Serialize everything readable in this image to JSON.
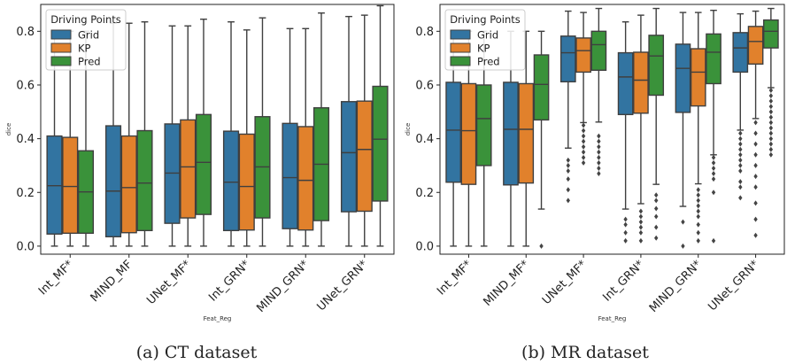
{
  "chart_data": [
    {
      "type": "box",
      "caption": "(a) CT dataset",
      "xlabel": "Feat_Reg",
      "ylabel": "dice",
      "ylim": [
        -0.03,
        0.9
      ],
      "yticks": [
        "0.0",
        "0.2",
        "0.4",
        "0.6",
        "0.8"
      ],
      "categories": [
        "Int_MF*",
        "MIND_MF",
        "UNet_MF*",
        "Int_GRN*",
        "MIND_GRN*",
        "UNet_GRN*"
      ],
      "legend": {
        "title": "Driving Points",
        "placement": "top-left"
      },
      "series": [
        {
          "name": "Grid",
          "color": "#3274a1",
          "boxes": [
            {
              "min": 0.0,
              "q1": 0.045,
              "median": 0.225,
              "q3": 0.41,
              "max": 0.8
            },
            {
              "min": 0.0,
              "q1": 0.035,
              "median": 0.205,
              "q3": 0.448,
              "max": 0.83
            },
            {
              "min": 0.0,
              "q1": 0.085,
              "median": 0.272,
              "q3": 0.455,
              "max": 0.82
            },
            {
              "min": 0.0,
              "q1": 0.058,
              "median": 0.238,
              "q3": 0.428,
              "max": 0.835
            },
            {
              "min": 0.0,
              "q1": 0.065,
              "median": 0.255,
              "q3": 0.457,
              "max": 0.81
            },
            {
              "min": 0.0,
              "q1": 0.128,
              "median": 0.348,
              "q3": 0.538,
              "max": 0.855
            }
          ]
        },
        {
          "name": "KP",
          "color": "#e1812c",
          "boxes": [
            {
              "min": 0.0,
              "q1": 0.048,
              "median": 0.222,
              "q3": 0.405,
              "max": 0.8
            },
            {
              "min": 0.0,
              "q1": 0.05,
              "median": 0.218,
              "q3": 0.41,
              "max": 0.83
            },
            {
              "min": 0.0,
              "q1": 0.105,
              "median": 0.295,
              "q3": 0.47,
              "max": 0.82
            },
            {
              "min": 0.0,
              "q1": 0.06,
              "median": 0.222,
              "q3": 0.417,
              "max": 0.805
            },
            {
              "min": 0.0,
              "q1": 0.06,
              "median": 0.245,
              "q3": 0.445,
              "max": 0.81
            },
            {
              "min": 0.0,
              "q1": 0.13,
              "median": 0.36,
              "q3": 0.54,
              "max": 0.86
            }
          ]
        },
        {
          "name": "Pred",
          "color": "#3a923a",
          "boxes": [
            {
              "min": 0.0,
              "q1": 0.048,
              "median": 0.202,
              "q3": 0.355,
              "max": 0.8
            },
            {
              "min": 0.0,
              "q1": 0.058,
              "median": 0.235,
              "q3": 0.43,
              "max": 0.835
            },
            {
              "min": 0.0,
              "q1": 0.118,
              "median": 0.312,
              "q3": 0.49,
              "max": 0.845
            },
            {
              "min": 0.0,
              "q1": 0.105,
              "median": 0.295,
              "q3": 0.482,
              "max": 0.85
            },
            {
              "min": 0.0,
              "q1": 0.095,
              "median": 0.305,
              "q3": 0.515,
              "max": 0.868
            },
            {
              "min": 0.0,
              "q1": 0.168,
              "median": 0.398,
              "q3": 0.595,
              "max": 0.895
            }
          ]
        }
      ]
    },
    {
      "type": "box",
      "caption": "(b) MR dataset",
      "xlabel": "Feat_Reg",
      "ylabel": "dice",
      "ylim": [
        -0.03,
        0.9
      ],
      "yticks": [
        "0.0",
        "0.2",
        "0.4",
        "0.6",
        "0.8"
      ],
      "categories": [
        "Int_MF*",
        "MIND_MF*",
        "UNet_MF*",
        "Int_GRN*",
        "MIND_GRN*",
        "UNet_GRN*"
      ],
      "legend": {
        "title": "Driving Points",
        "placement": "top-left"
      },
      "series": [
        {
          "name": "Grid",
          "color": "#3274a1",
          "boxes": [
            {
              "min": 0.0,
              "q1": 0.238,
              "median": 0.432,
              "q3": 0.61,
              "max": 0.8,
              "outliers": []
            },
            {
              "min": 0.0,
              "q1": 0.228,
              "median": 0.435,
              "q3": 0.61,
              "max": 0.8,
              "outliers": []
            },
            {
              "min": 0.365,
              "q1": 0.612,
              "median": 0.72,
              "q3": 0.782,
              "max": 0.875,
              "outliers": [
                0.32,
                0.3,
                0.28,
                0.25,
                0.21,
                0.17
              ]
            },
            {
              "min": 0.138,
              "q1": 0.49,
              "median": 0.63,
              "q3": 0.72,
              "max": 0.835,
              "outliers": [
                0.1,
                0.08,
                0.05,
                0.02
              ]
            },
            {
              "min": 0.148,
              "q1": 0.498,
              "median": 0.662,
              "q3": 0.752,
              "max": 0.87,
              "outliers": [
                0.09,
                0.0
              ]
            },
            {
              "min": 0.432,
              "q1": 0.648,
              "median": 0.738,
              "q3": 0.795,
              "max": 0.865,
              "outliers": [
                0.42,
                0.4,
                0.38,
                0.36,
                0.34,
                0.32,
                0.3,
                0.28,
                0.24,
                0.22,
                0.18
              ]
            }
          ]
        },
        {
          "name": "KP",
          "color": "#e1812c",
          "boxes": [
            {
              "min": 0.0,
              "q1": 0.23,
              "median": 0.43,
              "q3": 0.605,
              "max": 0.8,
              "outliers": []
            },
            {
              "min": 0.0,
              "q1": 0.235,
              "median": 0.435,
              "q3": 0.605,
              "max": 0.8,
              "outliers": []
            },
            {
              "min": 0.46,
              "q1": 0.648,
              "median": 0.728,
              "q3": 0.775,
              "max": 0.87,
              "outliers": [
                0.45,
                0.43,
                0.41,
                0.39,
                0.37,
                0.35,
                0.33,
                0.31
              ]
            },
            {
              "min": 0.158,
              "q1": 0.495,
              "median": 0.618,
              "q3": 0.722,
              "max": 0.86,
              "outliers": [
                0.13,
                0.11,
                0.09,
                0.07,
                0.05,
                0.02
              ]
            },
            {
              "min": 0.232,
              "q1": 0.522,
              "median": 0.648,
              "q3": 0.735,
              "max": 0.87,
              "outliers": [
                0.21,
                0.19,
                0.17,
                0.15,
                0.13,
                0.11,
                0.08,
                0.05,
                0.02
              ]
            },
            {
              "min": 0.475,
              "q1": 0.678,
              "median": 0.762,
              "q3": 0.818,
              "max": 0.875,
              "outliers": [
                0.46,
                0.42,
                0.38,
                0.34,
                0.3,
                0.26,
                0.22,
                0.16,
                0.1,
                0.04
              ]
            }
          ]
        },
        {
          "name": "Pred",
          "color": "#3a923a",
          "boxes": [
            {
              "min": 0.0,
              "q1": 0.3,
              "median": 0.475,
              "q3": 0.6,
              "max": 0.8,
              "outliers": []
            },
            {
              "min": 0.138,
              "q1": 0.47,
              "median": 0.602,
              "q3": 0.712,
              "max": 0.8,
              "outliers": [
                0.0
              ]
            },
            {
              "min": 0.462,
              "q1": 0.655,
              "median": 0.75,
              "q3": 0.8,
              "max": 0.885,
              "outliers": [
                0.41,
                0.39,
                0.37,
                0.35,
                0.33,
                0.31,
                0.29,
                0.27
              ]
            },
            {
              "min": 0.23,
              "q1": 0.562,
              "median": 0.708,
              "q3": 0.785,
              "max": 0.885,
              "outliers": [
                0.19,
                0.17,
                0.14,
                0.11,
                0.07,
                0.03
              ]
            },
            {
              "min": 0.34,
              "q1": 0.605,
              "median": 0.722,
              "q3": 0.79,
              "max": 0.878,
              "outliers": [
                0.33,
                0.31,
                0.29,
                0.27,
                0.25,
                0.2,
                0.02
              ]
            },
            {
              "min": 0.59,
              "q1": 0.738,
              "median": 0.8,
              "q3": 0.842,
              "max": 0.885,
              "outliers": [
                0.58,
                0.56,
                0.54,
                0.52,
                0.5,
                0.48,
                0.46,
                0.44,
                0.42,
                0.4,
                0.38,
                0.36,
                0.34
              ]
            }
          ]
        }
      ]
    }
  ]
}
